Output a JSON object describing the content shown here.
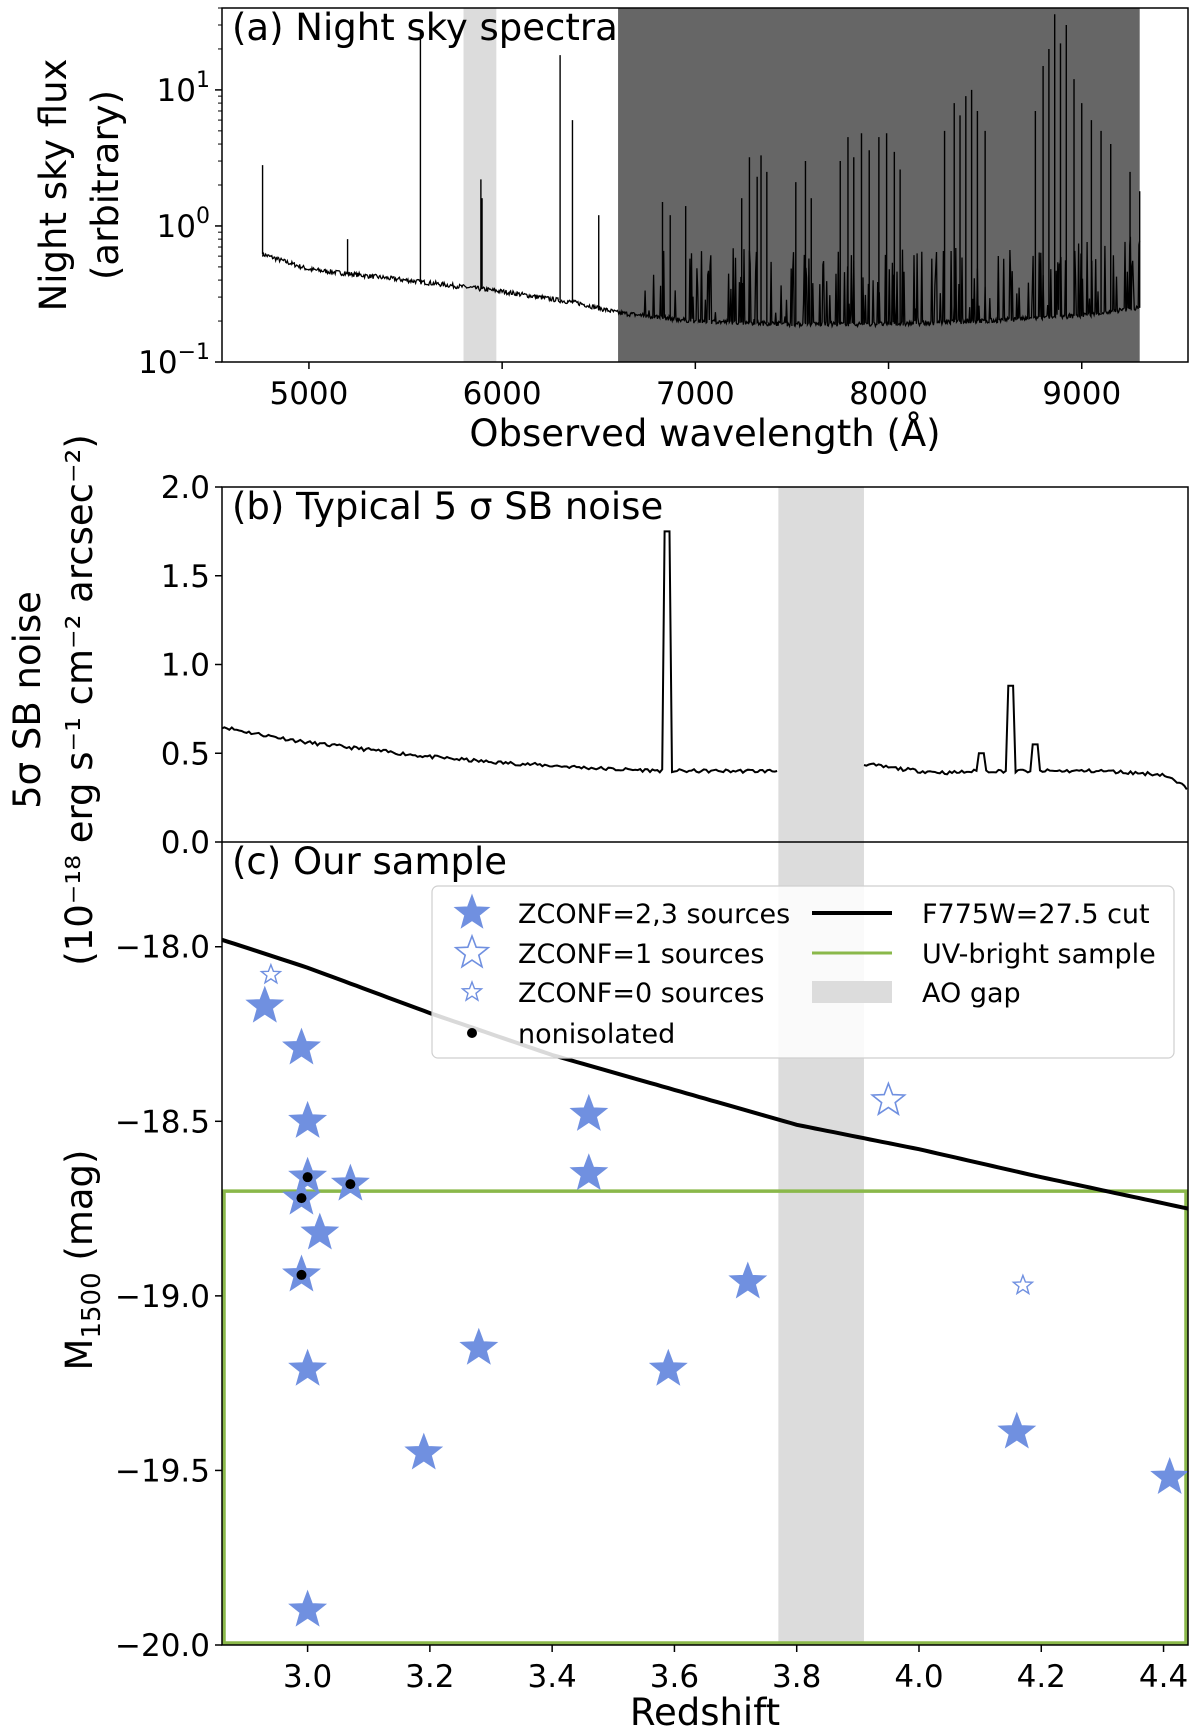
{
  "chart_data": [
    {
      "id": "a",
      "type": "line",
      "title": "(a) Night sky spectra",
      "xlabel": "Observed wavelength (Å)",
      "ylabel_line1": "Night sky flux",
      "ylabel_line2": "(arbitrary)",
      "xlim": [
        4550,
        9550
      ],
      "ylim": [
        0.1,
        40
      ],
      "yscale": "log",
      "xticks": [
        5000,
        6000,
        7000,
        8000,
        9000
      ],
      "yticks": [
        {
          "value": 0.1,
          "label": "10",
          "exp": "−1"
        },
        {
          "value": 1,
          "label": "10",
          "exp": "0"
        },
        {
          "value": 10,
          "label": "10",
          "exp": "1"
        }
      ],
      "shaded": [
        {
          "x0": 5800,
          "x1": 5970,
          "color": "#dcdcdc"
        },
        {
          "x0": 6600,
          "x1": 9300,
          "color": "#666666"
        }
      ],
      "continuum_points": [
        [
          4760,
          0.62
        ],
        [
          5000,
          0.48
        ],
        [
          5500,
          0.4
        ],
        [
          6000,
          0.33
        ],
        [
          6400,
          0.27
        ],
        [
          6600,
          0.23
        ],
        [
          7000,
          0.2
        ],
        [
          7500,
          0.19
        ],
        [
          8000,
          0.19
        ],
        [
          8500,
          0.2
        ],
        [
          9000,
          0.22
        ],
        [
          9300,
          0.25
        ]
      ],
      "emission_lines": [
        [
          4760,
          2.8
        ],
        [
          5200,
          0.8
        ],
        [
          5577,
          28
        ],
        [
          5890,
          2.2
        ],
        [
          5896,
          1.6
        ],
        [
          6300,
          18
        ],
        [
          6364,
          6
        ],
        [
          6500,
          1.2
        ],
        [
          6830,
          1.5
        ],
        [
          6870,
          1.2
        ],
        [
          6950,
          1.4
        ],
        [
          7240,
          1.6
        ],
        [
          7280,
          3.2
        ],
        [
          7320,
          2.3
        ],
        [
          7340,
          3.3
        ],
        [
          7370,
          2.5
        ],
        [
          7520,
          2.1
        ],
        [
          7570,
          3.0
        ],
        [
          7600,
          1.6
        ],
        [
          7750,
          3.0
        ],
        [
          7790,
          4.5
        ],
        [
          7820,
          3.2
        ],
        [
          7860,
          4.8
        ],
        [
          7900,
          3.6
        ],
        [
          7950,
          4.5
        ],
        [
          7990,
          4.8
        ],
        [
          8030,
          3.5
        ],
        [
          8060,
          2.6
        ],
        [
          8290,
          5.0
        ],
        [
          8340,
          8.0
        ],
        [
          8370,
          6.5
        ],
        [
          8400,
          9.0
        ],
        [
          8430,
          10.0
        ],
        [
          8460,
          7.0
        ],
        [
          8500,
          5.0
        ],
        [
          8760,
          7.0
        ],
        [
          8800,
          15.0
        ],
        [
          8830,
          20.0
        ],
        [
          8860,
          36.0
        ],
        [
          8890,
          22.0
        ],
        [
          8920,
          30.0
        ],
        [
          8960,
          12.0
        ],
        [
          9000,
          8.0
        ],
        [
          9050,
          6.0
        ],
        [
          9100,
          5.0
        ],
        [
          9150,
          4.0
        ],
        [
          9250,
          2.5
        ],
        [
          9300,
          1.8
        ]
      ]
    },
    {
      "id": "b",
      "type": "line",
      "title": "(b) Typical 5 σ SB noise",
      "ylabel_line1": "5σ SB noise",
      "ylabel_line2": "(10⁻¹⁸ erg s⁻¹ cm⁻² arcsec⁻²)",
      "xlim": [
        2.86,
        4.44
      ],
      "ylim": [
        0.0,
        2.0
      ],
      "yticks": [
        0.0,
        0.5,
        1.0,
        1.5,
        2.0
      ],
      "ytick_labels": [
        "0.0",
        "0.5",
        "1.0",
        "1.5",
        "2.0"
      ],
      "shaded": [
        {
          "x0": 3.77,
          "x1": 3.91,
          "color": "#dcdcdc"
        }
      ],
      "series": [
        {
          "name": "noise left",
          "points": [
            [
              2.86,
              0.65
            ],
            [
              2.9,
              0.62
            ],
            [
              2.95,
              0.59
            ],
            [
              3.0,
              0.56
            ],
            [
              3.1,
              0.52
            ],
            [
              3.2,
              0.48
            ],
            [
              3.3,
              0.45
            ],
            [
              3.4,
              0.43
            ],
            [
              3.5,
              0.41
            ],
            [
              3.6,
              0.4
            ],
            [
              3.7,
              0.4
            ],
            [
              3.77,
              0.4
            ]
          ]
        },
        {
          "name": "noise right",
          "points": [
            [
              3.91,
              0.44
            ],
            [
              3.95,
              0.42
            ],
            [
              4.0,
              0.4
            ],
            [
              4.05,
              0.39
            ],
            [
              4.1,
              0.4
            ],
            [
              4.2,
              0.4
            ],
            [
              4.3,
              0.4
            ],
            [
              4.4,
              0.38
            ],
            [
              4.44,
              0.3
            ]
          ]
        }
      ],
      "peaks": [
        [
          3.59,
          1.75
        ],
        [
          4.15,
          0.88
        ],
        [
          4.19,
          0.55
        ],
        [
          4.1,
          0.5
        ]
      ]
    },
    {
      "id": "c",
      "type": "scatter",
      "title": "(c) Our sample",
      "xlabel": "Redshift",
      "ylabel": "M",
      "ylabel_sub": "1500",
      "ylabel_unit": " (mag)",
      "xlim": [
        2.86,
        4.44
      ],
      "ylim": [
        -17.7,
        -20.0
      ],
      "xticks": [
        3.0,
        3.2,
        3.4,
        3.6,
        3.8,
        4.0,
        4.2,
        4.4
      ],
      "xtick_labels": [
        "3.0",
        "3.2",
        "3.4",
        "3.6",
        "3.8",
        "4.0",
        "4.2",
        "4.4"
      ],
      "yticks": [
        -18.0,
        -18.5,
        -19.0,
        -19.5,
        -20.0
      ],
      "ytick_labels": [
        "−18.0",
        "−18.5",
        "−19.0",
        "−19.5",
        "−20.0"
      ],
      "ao_gap": [
        3.77,
        3.91
      ],
      "uv_box": {
        "x0": 2.86,
        "x1": 4.44,
        "y0": -18.7,
        "y1": -20.0
      },
      "cut_curve": [
        [
          2.86,
          -17.98
        ],
        [
          3.0,
          -18.06
        ],
        [
          3.2,
          -18.19
        ],
        [
          3.4,
          -18.31
        ],
        [
          3.6,
          -18.41
        ],
        [
          3.8,
          -18.51
        ],
        [
          4.0,
          -18.58
        ],
        [
          4.2,
          -18.66
        ],
        [
          4.44,
          -18.75
        ]
      ],
      "zconf23": [
        [
          2.93,
          -18.17
        ],
        [
          2.99,
          -18.29
        ],
        [
          3.0,
          -18.5
        ],
        [
          3.0,
          -18.66
        ],
        [
          2.99,
          -18.72
        ],
        [
          3.07,
          -18.68
        ],
        [
          3.02,
          -18.82
        ],
        [
          2.99,
          -18.94
        ],
        [
          3.0,
          -19.21
        ],
        [
          3.0,
          -19.9
        ],
        [
          3.19,
          -19.45
        ],
        [
          3.28,
          -19.15
        ],
        [
          3.46,
          -18.48
        ],
        [
          3.46,
          -18.65
        ],
        [
          3.59,
          -19.21
        ],
        [
          3.72,
          -18.96
        ],
        [
          4.16,
          -19.39
        ],
        [
          4.41,
          -19.52
        ]
      ],
      "zconf1": [
        [
          3.95,
          -18.44
        ]
      ],
      "zconf0": [
        [
          2.94,
          -18.08
        ],
        [
          4.17,
          -18.97
        ]
      ],
      "nonisolated": [
        [
          3.0,
          -18.66
        ],
        [
          2.99,
          -18.72
        ],
        [
          3.07,
          -18.68
        ],
        [
          2.99,
          -18.94
        ]
      ],
      "legend": {
        "zconf23": "ZCONF=2,3 sources",
        "zconf1": "ZCONF=1 sources",
        "zconf0": "ZCONF=0 sources",
        "nonisolated": "nonisolated",
        "cut": "F775W=27.5 cut",
        "uv": "UV-bright sample",
        "ao": "AO gap"
      },
      "colors": {
        "star": "#7090e0",
        "uv": "#8ab84a",
        "ao": "#dcdcdc",
        "line": "#000000"
      }
    }
  ]
}
